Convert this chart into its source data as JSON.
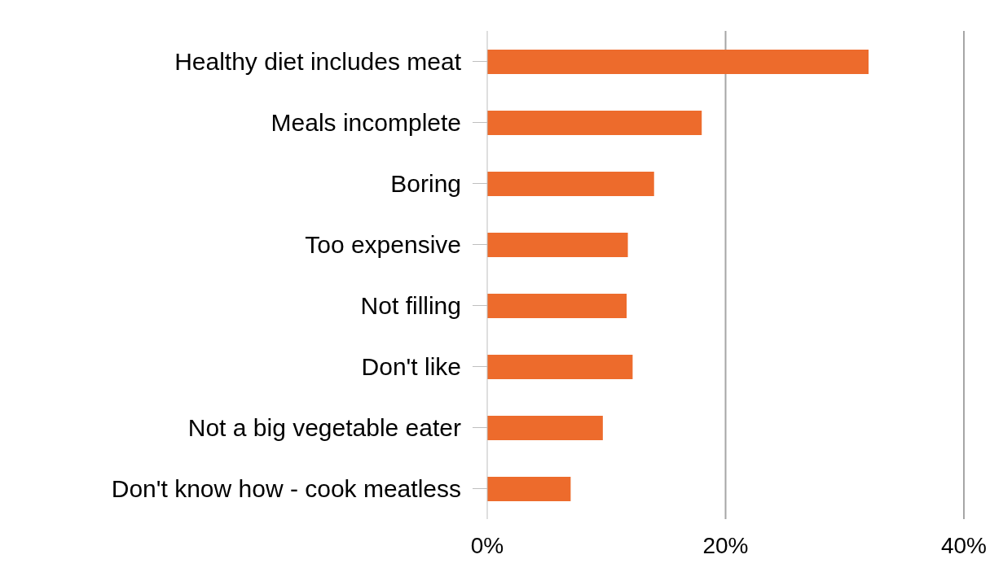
{
  "chart_data": {
    "type": "bar",
    "orientation": "horizontal",
    "categories": [
      "Healthy diet includes meat",
      "Meals incomplete",
      "Boring",
      "Too expensive",
      "Not filling",
      "Don't like",
      "Not a big vegetable eater",
      "Don't know how - cook meatless"
    ],
    "values": [
      32,
      18,
      14,
      11.8,
      11.7,
      12.2,
      9.7,
      7
    ],
    "color": "#ed6b2c",
    "xlim": [
      0,
      40
    ],
    "xticks": [
      {
        "value": 0,
        "label": "0%"
      },
      {
        "value": 20,
        "label": "20%"
      },
      {
        "value": 40,
        "label": "40%"
      }
    ],
    "grid": "x",
    "legend": false
  }
}
